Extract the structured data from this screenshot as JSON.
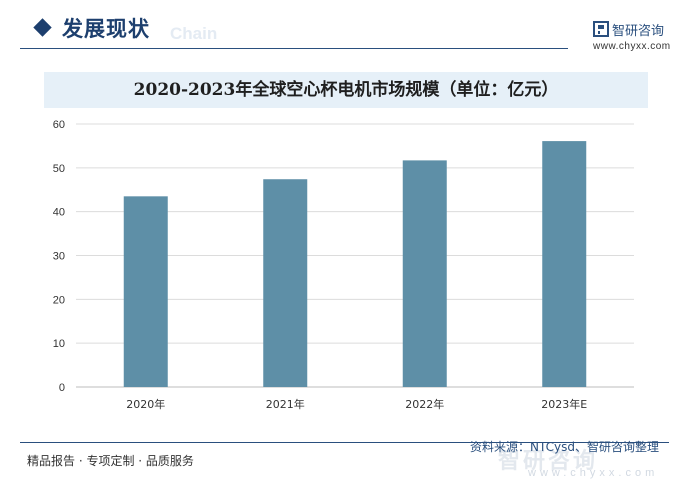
{
  "header": {
    "section_title": "发展现状",
    "section_watermark": "Chain",
    "brand_name": "智研咨询",
    "brand_url": "www.chyxx.com"
  },
  "chart_data": {
    "type": "bar",
    "title": "2020-2023年全球空心杯电机市场规模（单位：亿元）",
    "categories": [
      "2020年",
      "2021年",
      "2022年",
      "2023年E"
    ],
    "values": [
      43.5,
      47.4,
      51.7,
      56.1
    ],
    "ylim": [
      0,
      60
    ],
    "yticks": [
      "0",
      "10",
      "20",
      "30",
      "40",
      "50",
      "60"
    ],
    "xlabel": "",
    "ylabel": "",
    "grid": true,
    "bar_color": "#5e8fa7",
    "grid_color": "#dcdcdc"
  },
  "footer": {
    "left_text": "精品报告 · 专项定制 · 品质服务",
    "source": "资料来源：NTCysd、智研咨询整理",
    "watermark": "智研咨询",
    "watermark_url": "www.chyxx.com"
  },
  "colors": {
    "brand": "#1d3f6e",
    "title_band": "#e6f0f8"
  }
}
